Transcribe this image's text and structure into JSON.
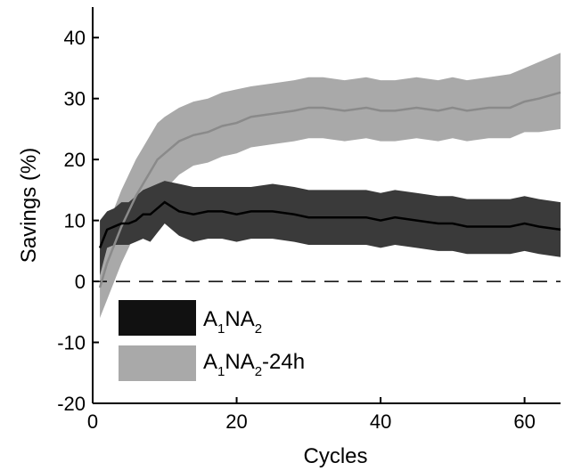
{
  "chart_data": {
    "type": "area",
    "xlabel": "Cycles",
    "ylabel": "Savings (%)",
    "xlim": [
      0,
      65
    ],
    "ylim": [
      -20,
      45
    ],
    "xticks": [
      0,
      20,
      40,
      60
    ],
    "yticks": [
      -20,
      -10,
      0,
      10,
      20,
      30,
      40
    ],
    "grid": false,
    "reference_line": {
      "y": 0,
      "style": "dashed"
    },
    "legend": {
      "placement": "bottom-left",
      "entries": [
        {
          "base": "A",
          "sub1": "1",
          "mid": "NA",
          "sub2": "2",
          "suffix": ""
        },
        {
          "base": "A",
          "sub1": "1",
          "mid": "NA",
          "sub2": "2",
          "suffix": "-24h"
        }
      ]
    },
    "x": [
      1,
      2,
      3,
      4,
      5,
      6,
      7,
      8,
      9,
      10,
      12,
      14,
      16,
      18,
      20,
      22,
      25,
      28,
      30,
      32,
      35,
      38,
      40,
      42,
      45,
      48,
      50,
      52,
      55,
      58,
      60,
      62,
      65
    ],
    "series": [
      {
        "name": "A1NA2",
        "line_color": "#000000",
        "band_color": "#3a3a3a",
        "mean": [
          5.5,
          8.5,
          9.0,
          9.5,
          9.5,
          10.0,
          11.0,
          11.0,
          12.0,
          13.0,
          11.5,
          11.0,
          11.5,
          11.5,
          11.0,
          11.5,
          11.5,
          11.0,
          10.5,
          10.5,
          10.5,
          10.5,
          10.0,
          10.5,
          10.0,
          9.5,
          9.5,
          9.0,
          9.0,
          9.0,
          9.5,
          9.0,
          8.5
        ],
        "upper": [
          10.0,
          11.5,
          12.0,
          13.0,
          13.0,
          14.0,
          15.0,
          15.5,
          16.0,
          16.5,
          16.0,
          15.5,
          15.5,
          15.5,
          15.5,
          15.5,
          16.0,
          15.5,
          15.0,
          15.0,
          15.0,
          15.0,
          14.5,
          15.0,
          14.5,
          14.0,
          14.0,
          13.5,
          13.5,
          13.5,
          14.0,
          13.5,
          13.0
        ],
        "lower": [
          1.0,
          5.5,
          6.0,
          6.0,
          6.0,
          6.5,
          7.0,
          6.5,
          8.0,
          9.5,
          7.5,
          6.5,
          7.0,
          7.0,
          6.5,
          7.0,
          7.0,
          6.5,
          6.0,
          6.0,
          6.0,
          6.0,
          5.5,
          6.0,
          5.5,
          5.0,
          5.0,
          4.5,
          4.5,
          4.5,
          5.0,
          4.5,
          4.0
        ]
      },
      {
        "name": "A1NA2-24h",
        "line_color": "#8a8a8a",
        "band_color": "#a9a9a9",
        "mean": [
          -1.0,
          3.0,
          6.0,
          9.0,
          11.5,
          14.0,
          16.0,
          18.0,
          20.0,
          21.0,
          23.0,
          24.0,
          24.5,
          25.5,
          26.0,
          27.0,
          27.5,
          28.0,
          28.5,
          28.5,
          28.0,
          28.5,
          28.0,
          28.0,
          28.5,
          28.0,
          28.5,
          28.0,
          28.5,
          28.5,
          29.5,
          30.0,
          31.0
        ],
        "upper": [
          5.0,
          9.0,
          12.0,
          15.0,
          17.5,
          20.0,
          22.0,
          24.0,
          26.0,
          27.0,
          28.5,
          29.5,
          30.0,
          31.0,
          31.5,
          32.0,
          32.5,
          33.0,
          33.5,
          33.5,
          33.0,
          33.5,
          33.0,
          33.0,
          33.5,
          33.0,
          33.5,
          33.0,
          33.5,
          34.0,
          35.0,
          36.0,
          37.5
        ],
        "lower": [
          -6.0,
          -3.0,
          0.0,
          3.0,
          5.5,
          8.0,
          10.0,
          12.0,
          14.0,
          15.0,
          17.5,
          19.0,
          19.5,
          20.5,
          21.0,
          22.0,
          22.5,
          23.0,
          23.5,
          23.5,
          23.0,
          23.5,
          23.0,
          23.0,
          23.5,
          23.0,
          23.5,
          23.0,
          23.5,
          23.5,
          24.5,
          24.5,
          25.0
        ]
      }
    ]
  }
}
